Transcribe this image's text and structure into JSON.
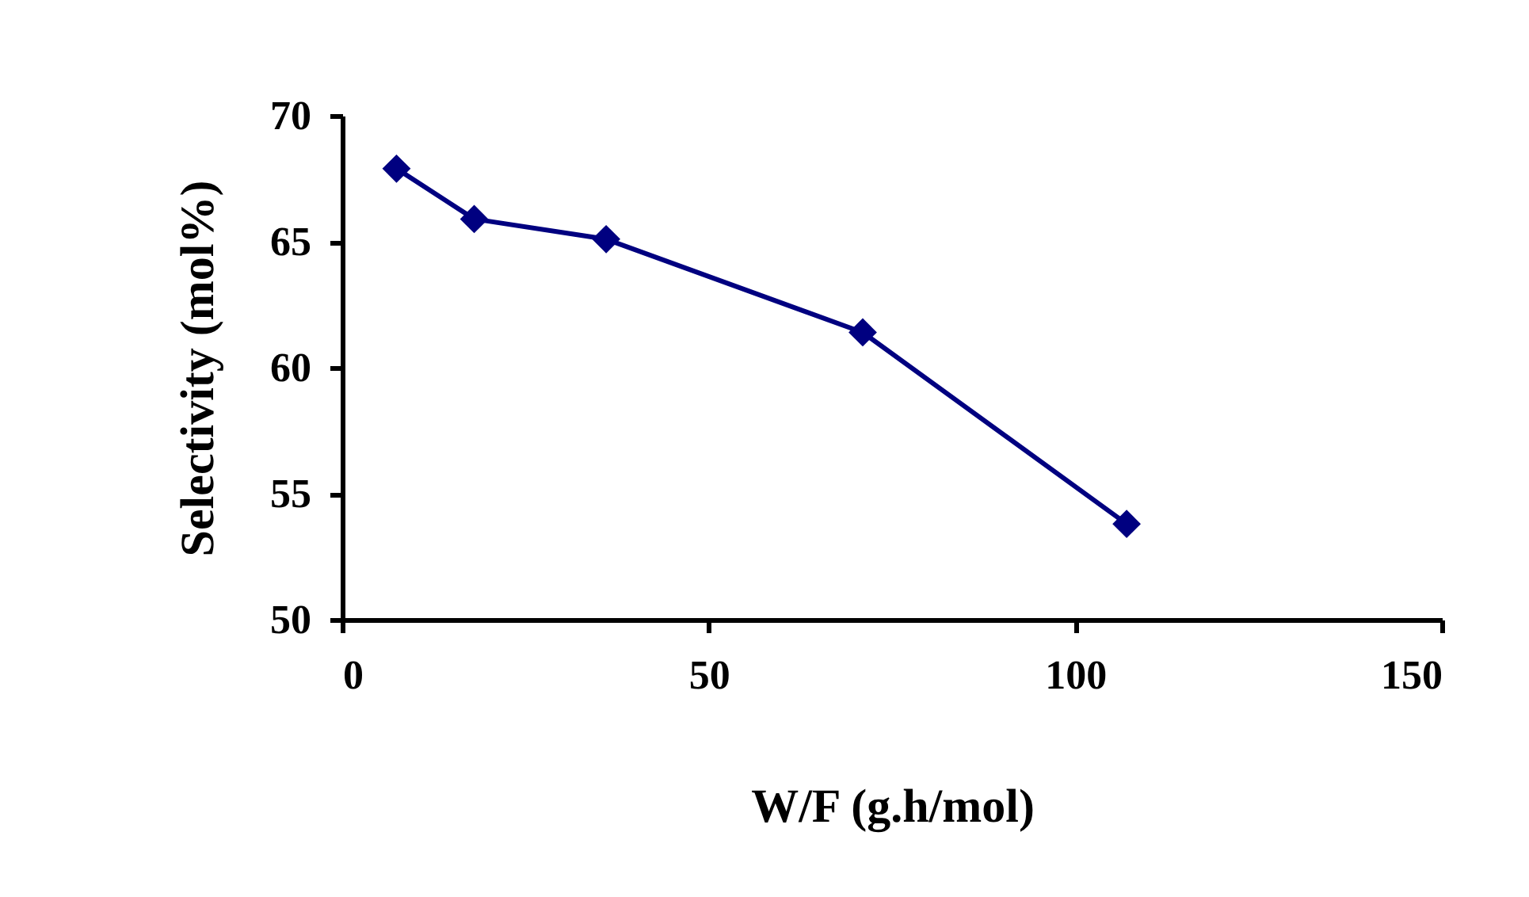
{
  "chart_data": {
    "type": "line",
    "xlabel": "W/F (g.h/mol)",
    "ylabel": "Selectivity (mol%)",
    "x": [
      7.4,
      18,
      36,
      71,
      107
    ],
    "series": [
      {
        "color": "#000080",
        "values": [
          67.9,
          65.9,
          65.1,
          61.4,
          53.8
        ]
      }
    ],
    "xlim": [
      0,
      150
    ],
    "xticks": [
      0,
      50,
      100,
      150
    ],
    "ylim": [
      50,
      70
    ],
    "yticks": [
      50,
      55,
      60,
      65,
      70
    ],
    "marker": "diamond",
    "line_style": "solid",
    "grid": false,
    "legend": false
  }
}
